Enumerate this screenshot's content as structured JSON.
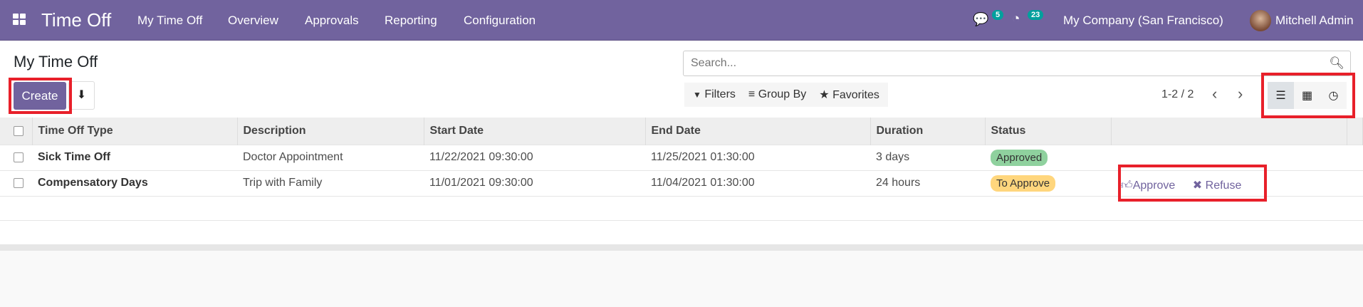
{
  "navbar": {
    "app_title": "Time Off",
    "menu": [
      "My Time Off",
      "Overview",
      "Approvals",
      "Reporting",
      "Configuration"
    ],
    "messages_count": "5",
    "activities_count": "23",
    "company": "My Company (San Francisco)",
    "user": "Mitchell Admin"
  },
  "control": {
    "page_title": "My Time Off",
    "create_label": "Create",
    "search_placeholder": "Search...",
    "filters": "Filters",
    "group_by": "Group By",
    "favorites": "Favorites",
    "pager": "1-2 / 2"
  },
  "table": {
    "headers": [
      "Time Off Type",
      "Description",
      "Start Date",
      "End Date",
      "Duration",
      "Status"
    ],
    "rows": [
      {
        "type": "Sick Time Off",
        "description": "Doctor Appointment",
        "start": "11/22/2021 09:30:00",
        "end": "11/25/2021 01:30:00",
        "duration": "3 days",
        "status": "Approved",
        "status_color": "#8fd19e"
      },
      {
        "type": "Compensatory Days",
        "description": "Trip with Family",
        "start": "11/01/2021 09:30:00",
        "end": "11/04/2021 01:30:00",
        "duration": "24 hours",
        "status": "To Approve",
        "status_color": "#ffd67d",
        "approve": "Approve",
        "refuse": "Refuse"
      }
    ]
  },
  "colors": {
    "brand": "#71639e",
    "highlight": "#e8202a"
  }
}
